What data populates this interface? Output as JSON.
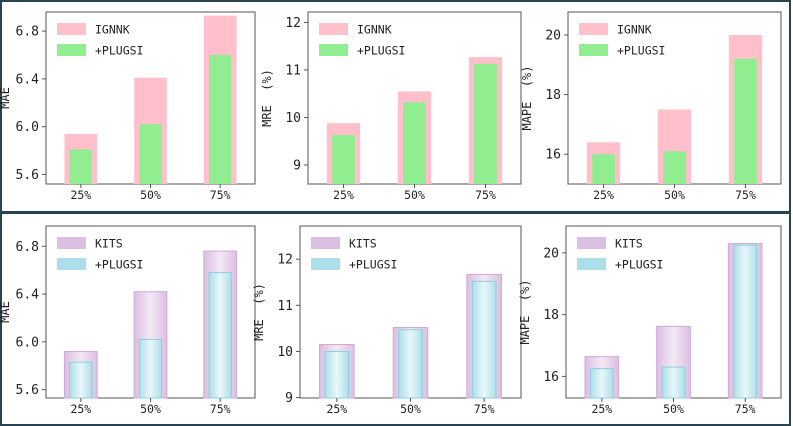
{
  "chart_data": [
    {
      "type": "bar",
      "ylabel": "MAE",
      "categories": [
        "25%",
        "50%",
        "75%"
      ],
      "series": [
        {
          "name": "IGNNK",
          "values": [
            5.94,
            6.41,
            6.93
          ]
        },
        {
          "name": "+PLUGSI",
          "values": [
            5.81,
            6.02,
            6.6
          ]
        }
      ],
      "yticks": [
        "5.6",
        "6.0",
        "6.4",
        "6.8"
      ],
      "ylim": [
        5.52,
        6.96
      ],
      "legend": "top-left",
      "grid": false
    },
    {
      "type": "bar",
      "ylabel": "MRE  (%)",
      "categories": [
        "25%",
        "50%",
        "75%"
      ],
      "series": [
        {
          "name": "IGNNK",
          "values": [
            9.88,
            10.55,
            11.27
          ]
        },
        {
          "name": "+PLUGSI",
          "values": [
            9.63,
            10.32,
            11.13
          ]
        }
      ],
      "yticks": [
        "9",
        "10",
        "11",
        "12"
      ],
      "ylim": [
        8.6,
        12.22
      ],
      "legend": "top-left",
      "grid": false
    },
    {
      "type": "bar",
      "ylabel": "MAPE  (%)",
      "categories": [
        "25%",
        "50%",
        "75%"
      ],
      "series": [
        {
          "name": "IGNNK",
          "values": [
            16.4,
            17.5,
            20.0
          ]
        },
        {
          "name": "+PLUGSI",
          "values": [
            16.0,
            16.1,
            19.2
          ]
        }
      ],
      "yticks": [
        "16",
        "18",
        "20"
      ],
      "ylim": [
        15.0,
        20.77
      ],
      "legend": "top-left",
      "grid": false
    },
    {
      "type": "bar",
      "ylabel": "MAE",
      "categories": [
        "25%",
        "50%",
        "75%"
      ],
      "series": [
        {
          "name": "KITS",
          "values": [
            5.92,
            6.42,
            6.76
          ]
        },
        {
          "name": "+PLUGSI",
          "values": [
            5.83,
            6.02,
            6.58
          ]
        }
      ],
      "yticks": [
        "5.6",
        "6.0",
        "6.4",
        "6.8"
      ],
      "ylim": [
        5.53,
        6.97
      ],
      "legend": "top-left",
      "grid": false
    },
    {
      "type": "bar",
      "ylabel": "MRE  (%)",
      "categories": [
        "25%",
        "50%",
        "75%"
      ],
      "series": [
        {
          "name": "KITS",
          "values": [
            10.15,
            10.52,
            11.67
          ]
        },
        {
          "name": "+PLUGSI",
          "values": [
            10.0,
            10.47,
            11.52
          ]
        }
      ],
      "yticks": [
        "9",
        "10",
        "11",
        "12"
      ],
      "ylim": [
        8.99,
        12.72
      ],
      "legend": "top-left",
      "grid": false
    },
    {
      "type": "bar",
      "ylabel": "MAPE  (%)",
      "categories": [
        "25%",
        "50%",
        "75%"
      ],
      "series": [
        {
          "name": "KITS",
          "values": [
            16.64,
            17.62,
            20.3
          ]
        },
        {
          "name": "+PLUGSI",
          "values": [
            16.25,
            16.3,
            20.25
          ]
        }
      ],
      "yticks": [
        "16",
        "18",
        "20"
      ],
      "ylim": [
        15.3,
        20.87
      ],
      "legend": "top-left",
      "grid": false
    }
  ],
  "colors": {
    "ignnk": "#ffc0cb",
    "plugsi_green": "#90ee90",
    "kits": "#dbbfe2",
    "plugsi_blue": "#addfe8",
    "axis": "#555555",
    "frame": "#27444f"
  }
}
